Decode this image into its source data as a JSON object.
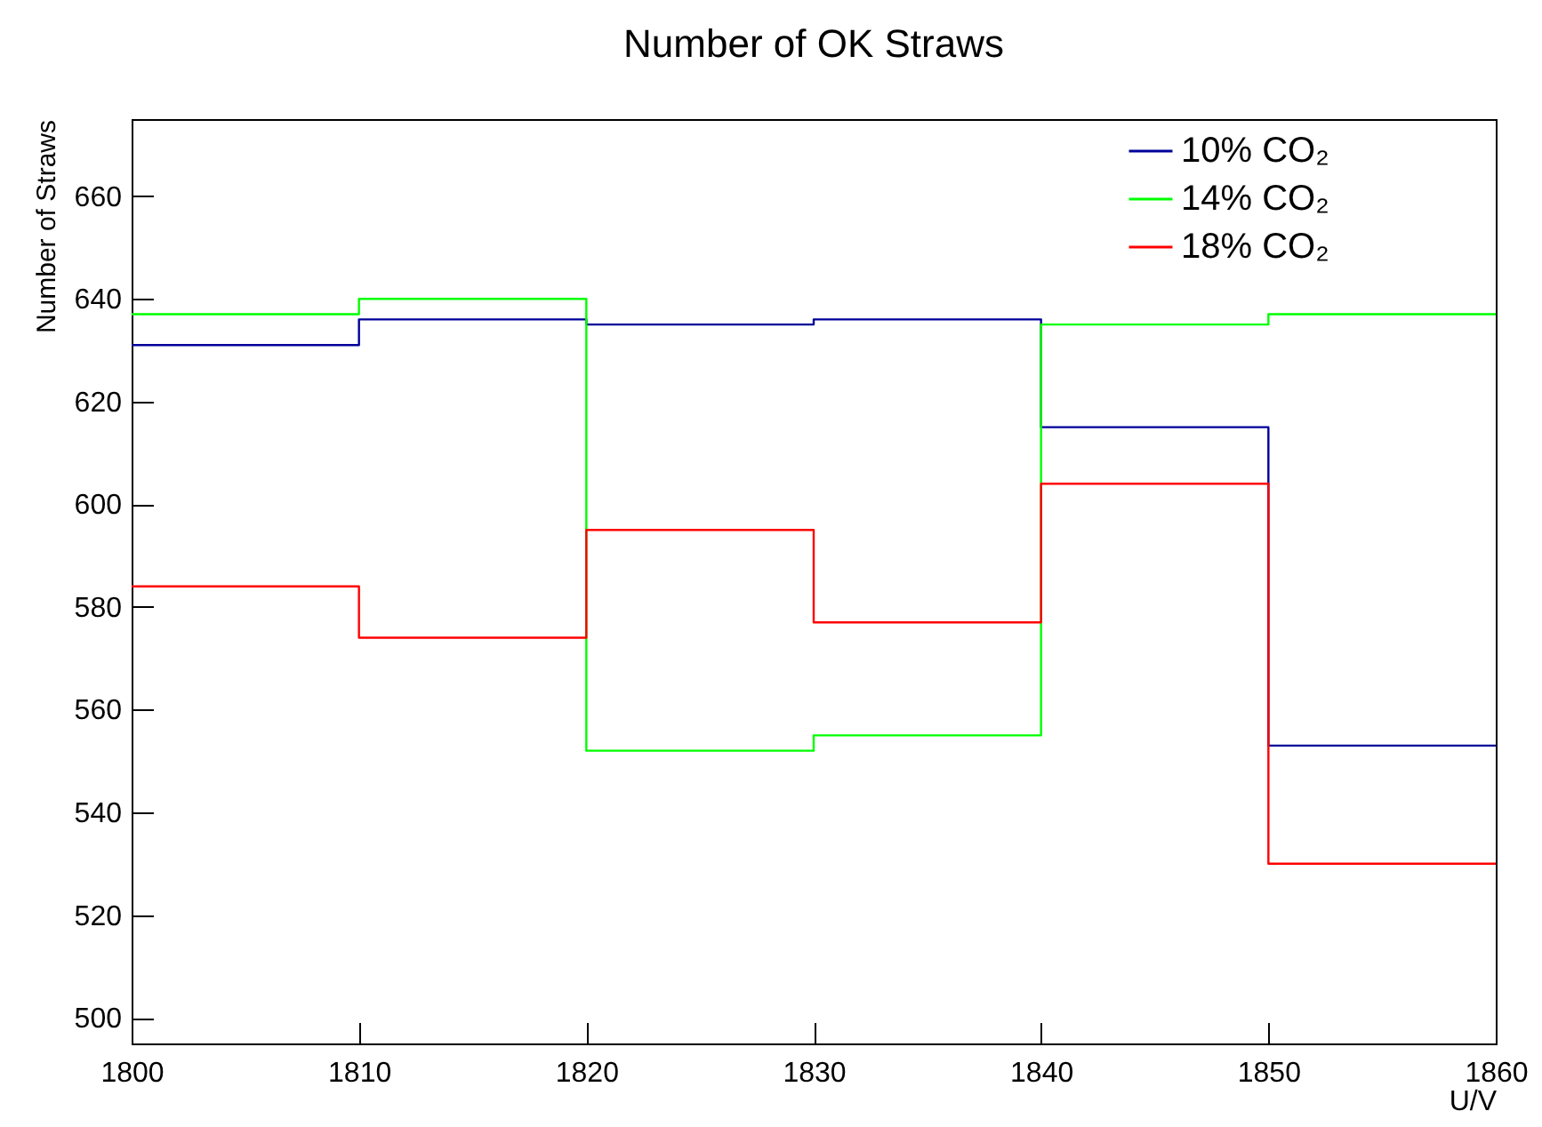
{
  "chart_data": {
    "type": "histogram",
    "title": "Number of OK Straws",
    "xlabel": "U/V",
    "ylabel": "Number of Straws",
    "bins": [
      1800,
      1810,
      1820,
      1830,
      1840,
      1850,
      1860
    ],
    "series": [
      {
        "name": "10% CO₂",
        "color": "#000099",
        "values": [
          631,
          636,
          635,
          636,
          615,
          553
        ]
      },
      {
        "name": "14% CO₂",
        "color": "#00ff00",
        "values": [
          637,
          640,
          552,
          555,
          635,
          637
        ]
      },
      {
        "name": "18% CO₂",
        "color": "#ff0000",
        "values": [
          584,
          574,
          595,
          577,
          604,
          530
        ]
      }
    ],
    "xlim": [
      1800,
      1860
    ],
    "xticks": [
      1800,
      1810,
      1820,
      1830,
      1840,
      1850,
      1860
    ],
    "ylim": [
      495,
      675
    ],
    "yticks": [
      500,
      520,
      540,
      560,
      580,
      600,
      620,
      640,
      660
    ],
    "grid": false,
    "legend": "top right"
  }
}
